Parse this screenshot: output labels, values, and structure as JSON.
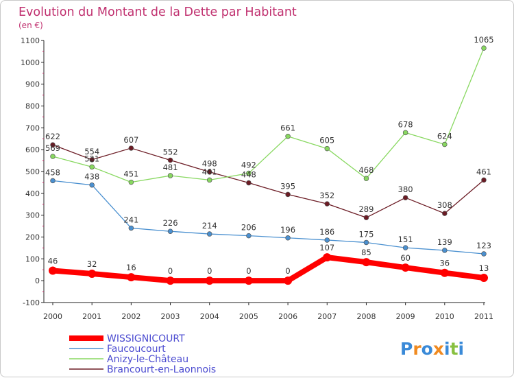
{
  "chart_data": {
    "type": "line",
    "title": "Evolution du Montant de la Dette par Habitant",
    "subtitle": "(en €)",
    "xlabel": "",
    "ylabel": "",
    "categories": [
      "2000",
      "2001",
      "2002",
      "2003",
      "2004",
      "2005",
      "2006",
      "2007",
      "2008",
      "2009",
      "2010",
      "2011"
    ],
    "ylim": [
      -100,
      1100
    ],
    "yticks": [
      -100,
      0,
      100,
      200,
      300,
      400,
      500,
      600,
      700,
      800,
      900,
      1000,
      1100
    ],
    "grid": false,
    "legend_position": "bottom-left",
    "series": [
      {
        "name": "WISSIGNICOURT",
        "color": "#ff0000",
        "values": [
          46,
          32,
          16,
          0,
          0,
          0,
          0,
          107,
          85,
          60,
          36,
          13
        ]
      },
      {
        "name": "Faucoucourt",
        "color": "#4a90d0",
        "values": [
          458,
          438,
          241,
          226,
          214,
          206,
          196,
          186,
          175,
          151,
          139,
          123
        ]
      },
      {
        "name": "Anizy-le-Château",
        "color": "#88d860",
        "values": [
          569,
          521,
          451,
          481,
          461,
          492,
          661,
          605,
          468,
          678,
          624,
          1065
        ]
      },
      {
        "name": "Brancourt-en-Laonnois",
        "color": "#6b1b24",
        "values": [
          622,
          554,
          607,
          552,
          498,
          448,
          395,
          352,
          289,
          380,
          308,
          461
        ]
      }
    ]
  },
  "brand": {
    "letters": [
      "P",
      "r",
      "o",
      "x",
      "i",
      "t",
      "i"
    ],
    "colors": [
      "#3a8ad8",
      "#f08a20",
      "#3a8ad8",
      "#f08a20",
      "#3a8ad8",
      "#88c040",
      "#3a8ad8"
    ]
  }
}
